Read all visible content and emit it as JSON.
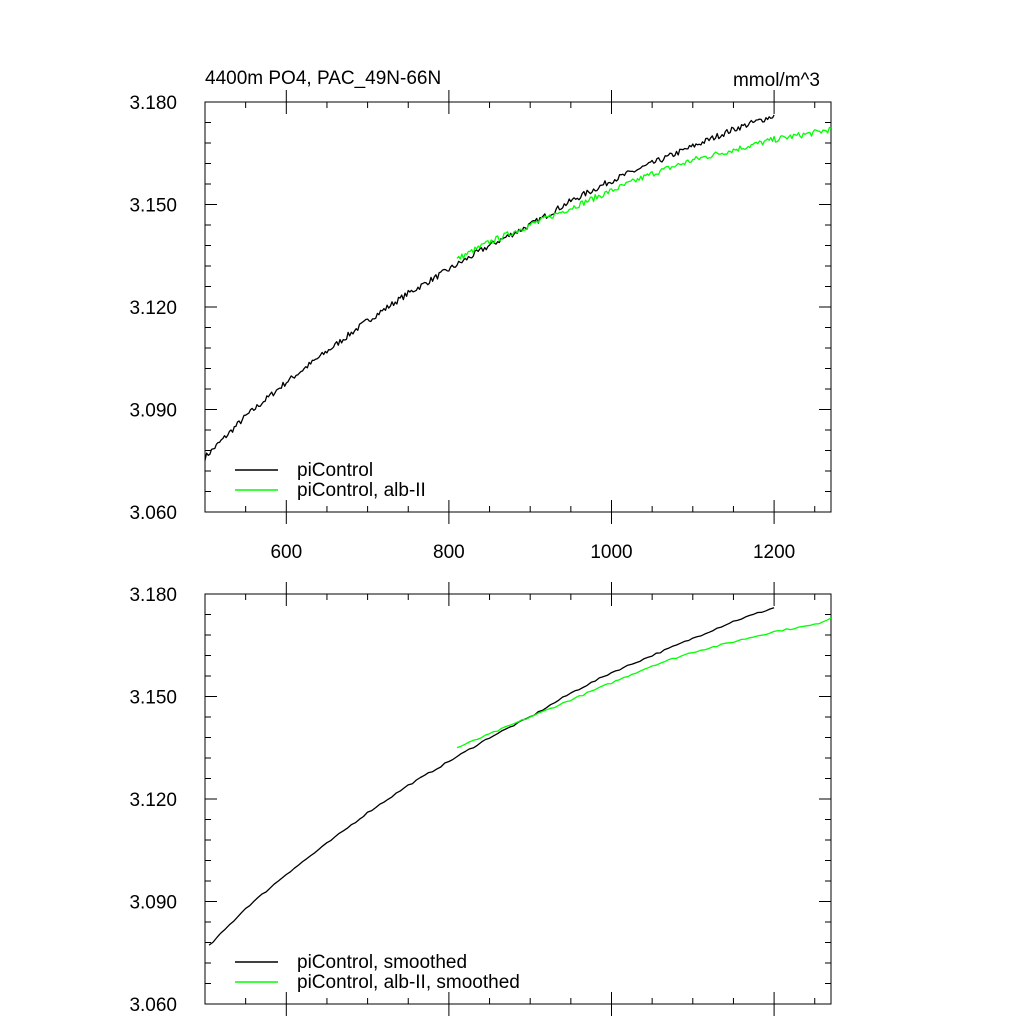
{
  "figure": {
    "title": "4400m PO4, PAC_49N-66N",
    "units": "mmol/m^3"
  },
  "chart_data": [
    {
      "type": "line",
      "title": "4400m PO4, PAC_49N-66N",
      "ylabel": "",
      "xlabel": "",
      "units": "mmol/m^3",
      "xlim": [
        500,
        1270
      ],
      "ylim": [
        3.06,
        3.18
      ],
      "x_ticks": [
        "600",
        "800",
        "1000",
        "1200"
      ],
      "y_ticks": [
        "3.060",
        "3.090",
        "3.120",
        "3.150",
        "3.180"
      ],
      "legend_position": "bottom-left",
      "noisy": true,
      "series": [
        {
          "name": "piControl",
          "color": "#000000",
          "x": [
            500,
            550,
            600,
            650,
            700,
            750,
            800,
            850,
            900,
            950,
            1000,
            1050,
            1100,
            1150,
            1200
          ],
          "y": [
            3.076,
            3.088,
            3.098,
            3.107,
            3.116,
            3.124,
            3.131,
            3.138,
            3.144,
            3.151,
            3.157,
            3.162,
            3.167,
            3.172,
            3.176
          ]
        },
        {
          "name": "piControl, alb-II",
          "color": "#00ff00",
          "x": [
            810,
            850,
            900,
            950,
            1000,
            1050,
            1100,
            1150,
            1200,
            1250,
            1270
          ],
          "y": [
            3.134,
            3.139,
            3.144,
            3.149,
            3.154,
            3.159,
            3.163,
            3.166,
            3.169,
            3.171,
            3.172
          ]
        }
      ]
    },
    {
      "type": "line",
      "title": "",
      "ylabel": "",
      "xlabel": "",
      "xlim": [
        500,
        1270
      ],
      "ylim": [
        3.06,
        3.18
      ],
      "x_ticks": [],
      "y_ticks": [
        "3.060",
        "3.090",
        "3.120",
        "3.150",
        "3.180"
      ],
      "legend_position": "bottom-left",
      "noisy": false,
      "series": [
        {
          "name": "piControl, smoothed",
          "color": "#000000",
          "x": [
            505,
            550,
            600,
            650,
            700,
            750,
            800,
            850,
            900,
            950,
            1000,
            1050,
            1100,
            1150,
            1200
          ],
          "y": [
            3.077,
            3.088,
            3.098,
            3.107,
            3.116,
            3.124,
            3.131,
            3.138,
            3.144,
            3.151,
            3.157,
            3.162,
            3.167,
            3.172,
            3.176
          ]
        },
        {
          "name": "piControl, alb-II, smoothed",
          "color": "#00ff00",
          "x": [
            810,
            850,
            900,
            950,
            1000,
            1050,
            1100,
            1150,
            1200,
            1250,
            1270
          ],
          "y": [
            3.135,
            3.139,
            3.144,
            3.149,
            3.154,
            3.159,
            3.163,
            3.166,
            3.169,
            3.171,
            3.173
          ]
        }
      ]
    }
  ]
}
